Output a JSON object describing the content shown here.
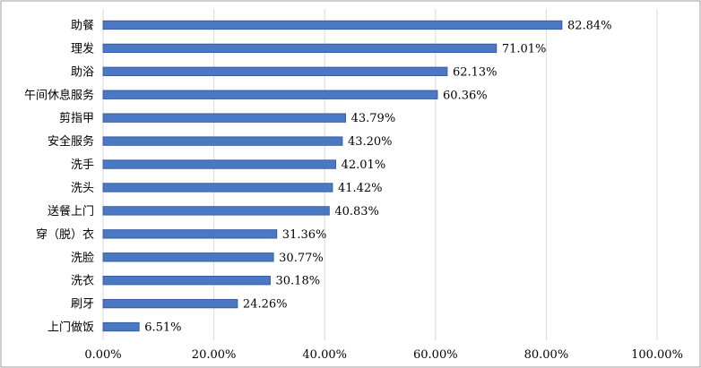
{
  "chart_data": {
    "type": "bar",
    "orientation": "horizontal",
    "categories": [
      "助餐",
      "理发",
      "助浴",
      "午间休息服务",
      "剪指甲",
      "安全服务",
      "洗手",
      "洗头",
      "送餐上门",
      "穿（脱）衣",
      "洗脸",
      "洗衣",
      "刷牙",
      "上门做饭"
    ],
    "values": [
      82.84,
      71.01,
      62.13,
      60.36,
      43.79,
      43.2,
      42.01,
      41.42,
      40.83,
      31.36,
      30.77,
      30.18,
      24.26,
      6.51
    ],
    "value_labels": [
      "82.84%",
      "71.01%",
      "62.13%",
      "60.36%",
      "43.79%",
      "43.20%",
      "42.01%",
      "41.42%",
      "40.83%",
      "31.36%",
      "30.77%",
      "30.18%",
      "24.26%",
      "6.51%"
    ],
    "xlim": [
      0,
      100
    ],
    "x_ticks": [
      0,
      20,
      40,
      60,
      80,
      100
    ],
    "x_tick_labels": [
      "0.00%",
      "20.00%",
      "40.00%",
      "60.00%",
      "80.00%",
      "100.00%"
    ],
    "grid": true,
    "title": "",
    "xlabel": "",
    "ylabel": "",
    "colors": {
      "bar": "#4a78c2",
      "bar_edge": "#2f5597",
      "grid": "#d9d9d9"
    }
  }
}
